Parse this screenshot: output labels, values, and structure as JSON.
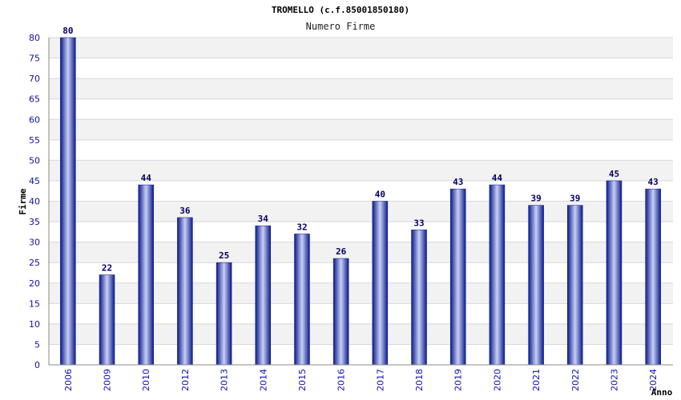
{
  "chart_data": {
    "type": "bar",
    "title": "TROMELLO (c.f.85001850180)",
    "subtitle": "Numero Firme",
    "xlabel": "Anno",
    "ylabel": "Firme",
    "ylim": [
      0,
      80
    ],
    "ytick_step": 5,
    "grid": true,
    "categories": [
      "2006",
      "2009",
      "2010",
      "2012",
      "2013",
      "2014",
      "2015",
      "2016",
      "2017",
      "2018",
      "2019",
      "2020",
      "2021",
      "2022",
      "2023",
      "2024"
    ],
    "values": [
      80,
      22,
      44,
      36,
      25,
      34,
      32,
      26,
      40,
      33,
      43,
      44,
      39,
      39,
      45,
      43
    ],
    "colors": {
      "bar_dark": "#0a1a8c",
      "bar_light": "#c8d0f4",
      "band": "#f2f2f2",
      "gridline": "#d8d8d8",
      "tick_text": "#1010b0"
    }
  }
}
